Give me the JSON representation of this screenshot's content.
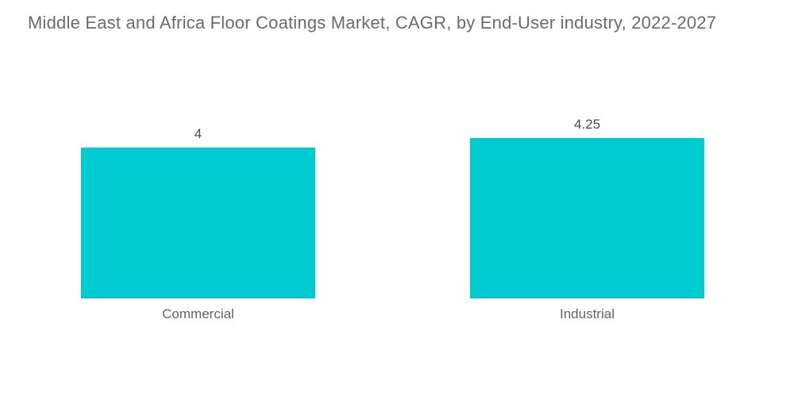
{
  "title": "Middle East and Africa Floor Coatings Market, CAGR, by End-User industry, 2022-2027",
  "colors": {
    "background": "#ffffff",
    "bar": "#00cbd0",
    "title_text": "#6b6b6b",
    "value_text": "#4a4a4a",
    "category_text": "#5f6368"
  },
  "chart_data": {
    "type": "bar",
    "title": "Middle East and Africa Floor Coatings Market, CAGR, by End-User industry, 2022-2027",
    "categories": [
      "Commercial",
      "Industrial"
    ],
    "values": [
      4,
      4.25
    ],
    "value_labels": [
      "4",
      "4.25"
    ],
    "series_name": "CAGR",
    "xlabel": "",
    "ylabel": "",
    "ylim": [
      0,
      4.25
    ],
    "grid": false,
    "legend": false,
    "axes_visible": false,
    "bar_color": "#00cbd0"
  }
}
